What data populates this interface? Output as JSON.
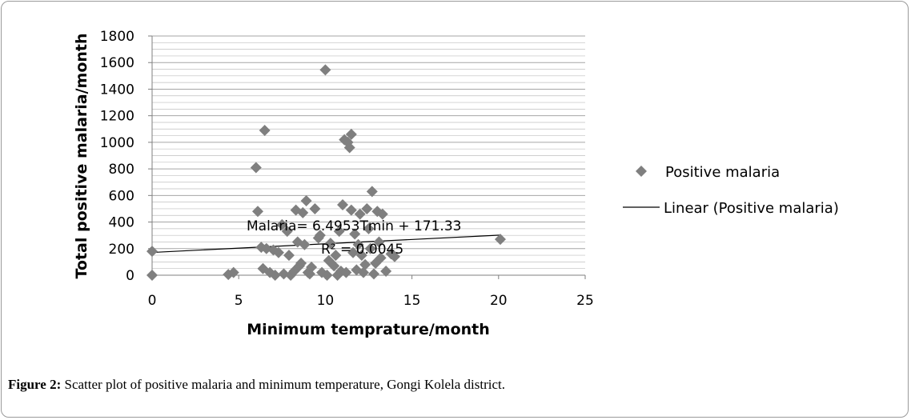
{
  "caption": {
    "label": "Figure 2:",
    "text": " Scatter plot of positive malaria and minimum temperature, Gongi Kolela district."
  },
  "chart_data": {
    "type": "scatter",
    "xlabel": "Minimum temprature/month",
    "ylabel": "Total positive malaria/month",
    "xlim": [
      0,
      25
    ],
    "ylim": [
      0,
      1800
    ],
    "xticks": [
      "0",
      "5",
      "10",
      "15",
      "20",
      "25"
    ],
    "yticks": [
      "0",
      "200",
      "400",
      "600",
      "800",
      "1000",
      "1200",
      "1400",
      "1600",
      "1800"
    ],
    "grid": true,
    "legend_position": "right",
    "colors": {
      "marker": "#7f7f7f",
      "trendline": "#000000",
      "grid": "#bfbfbf"
    },
    "series": [
      {
        "name": "Positive malaria",
        "marker": "diamond",
        "points": [
          [
            0,
            180
          ],
          [
            0,
            0
          ],
          [
            4.4,
            5
          ],
          [
            4.7,
            20
          ],
          [
            6.0,
            810
          ],
          [
            6.1,
            480
          ],
          [
            6.3,
            210
          ],
          [
            6.4,
            50
          ],
          [
            6.5,
            1090
          ],
          [
            6.6,
            200
          ],
          [
            6.8,
            20
          ],
          [
            7.0,
            190
          ],
          [
            7.1,
            0
          ],
          [
            7.3,
            170
          ],
          [
            7.5,
            380
          ],
          [
            7.6,
            10
          ],
          [
            7.8,
            330
          ],
          [
            7.9,
            150
          ],
          [
            8.0,
            0
          ],
          [
            8.2,
            30
          ],
          [
            8.3,
            490
          ],
          [
            8.4,
            250
          ],
          [
            8.5,
            70
          ],
          [
            8.6,
            90
          ],
          [
            8.7,
            470
          ],
          [
            8.8,
            230
          ],
          [
            8.9,
            560
          ],
          [
            9.0,
            20
          ],
          [
            9.1,
            10
          ],
          [
            9.2,
            60
          ],
          [
            9.4,
            500
          ],
          [
            9.6,
            280
          ],
          [
            9.7,
            300
          ],
          [
            9.8,
            20
          ],
          [
            10.0,
            1545
          ],
          [
            10.1,
            0
          ],
          [
            10.2,
            110
          ],
          [
            10.3,
            240
          ],
          [
            10.5,
            70
          ],
          [
            10.6,
            150
          ],
          [
            10.7,
            0
          ],
          [
            10.8,
            330
          ],
          [
            10.9,
            30
          ],
          [
            11.0,
            530
          ],
          [
            11.1,
            1020
          ],
          [
            11.2,
            20
          ],
          [
            11.3,
            1000
          ],
          [
            11.4,
            960
          ],
          [
            11.5,
            1060
          ],
          [
            11.5,
            490
          ],
          [
            11.6,
            170
          ],
          [
            11.7,
            310
          ],
          [
            11.8,
            40
          ],
          [
            11.9,
            230
          ],
          [
            12.0,
            460
          ],
          [
            12.1,
            150
          ],
          [
            12.2,
            20
          ],
          [
            12.3,
            80
          ],
          [
            12.4,
            500
          ],
          [
            12.5,
            350
          ],
          [
            12.6,
            200
          ],
          [
            12.7,
            630
          ],
          [
            12.8,
            10
          ],
          [
            12.9,
            90
          ],
          [
            13.0,
            480
          ],
          [
            13.1,
            250
          ],
          [
            13.2,
            130
          ],
          [
            13.3,
            460
          ],
          [
            13.5,
            30
          ],
          [
            13.8,
            160
          ],
          [
            14.0,
            140
          ],
          [
            20.1,
            270
          ]
        ]
      },
      {
        "name": "Linear (Positive malaria)",
        "type": "line",
        "slope": 6.4953,
        "intercept": 171.33
      }
    ],
    "annotations": [
      {
        "text": "Malaria= 6.4953Tmin  + 171.33"
      },
      {
        "text": "R² = 0.0045"
      }
    ]
  }
}
